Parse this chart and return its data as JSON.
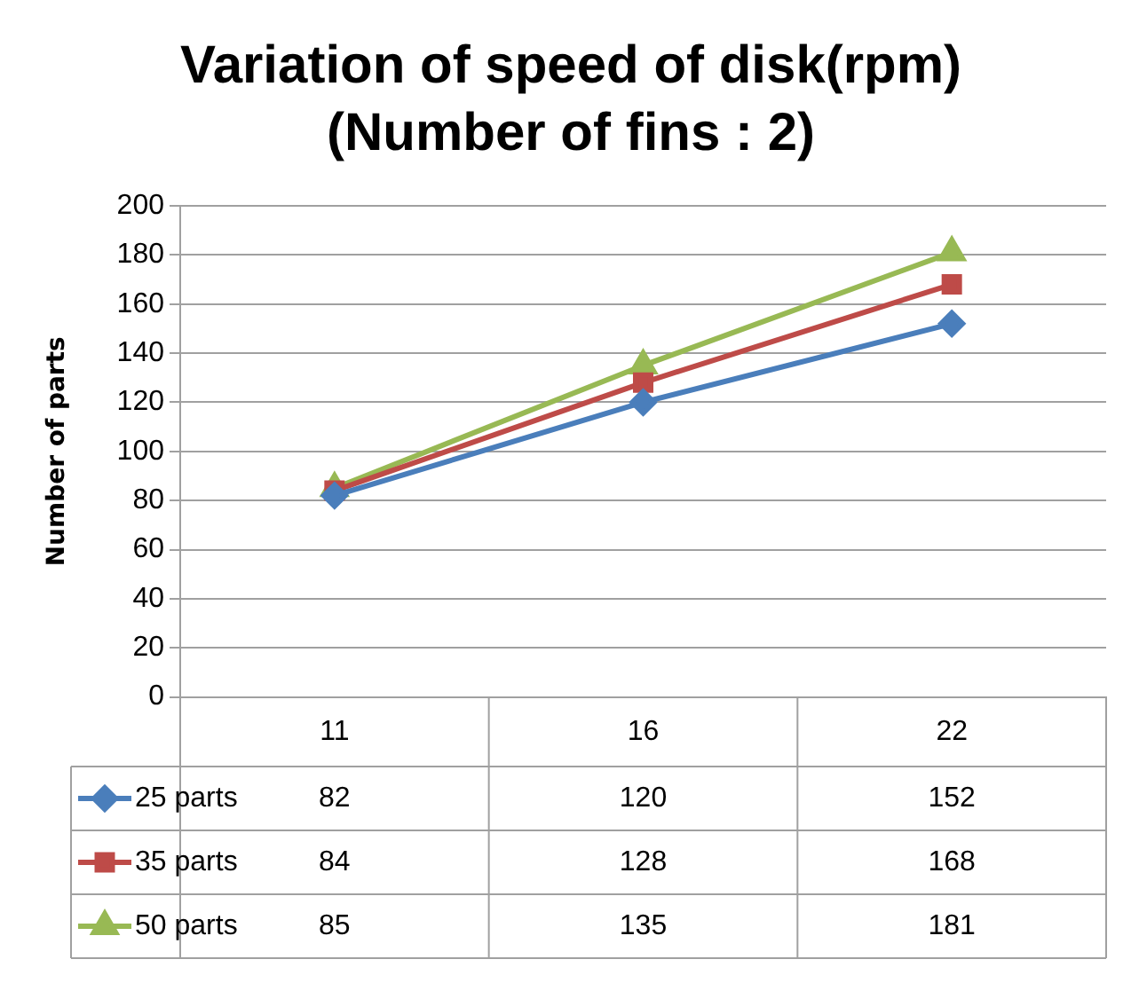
{
  "chart_data": {
    "type": "line",
    "title": "Variation of speed of disk(rpm)",
    "subtitle": "(Number of fins : 2)",
    "ylabel": "Number of parts",
    "categories": [
      "11",
      "16",
      "22"
    ],
    "series": [
      {
        "name": "25 parts",
        "color": "#4a7ebb",
        "marker": "diamond",
        "values": [
          82,
          120,
          152
        ]
      },
      {
        "name": "35 parts",
        "color": "#be4b48",
        "marker": "square",
        "values": [
          84,
          128,
          168
        ]
      },
      {
        "name": "50 parts",
        "color": "#98b954",
        "marker": "triangle",
        "values": [
          85,
          135,
          181
        ]
      }
    ],
    "ylim": [
      0,
      200
    ],
    "yticks": [
      0,
      20,
      40,
      60,
      80,
      100,
      120,
      140,
      160,
      180,
      200
    ],
    "grid": "y",
    "legend": "bottom",
    "data_labels": true
  }
}
